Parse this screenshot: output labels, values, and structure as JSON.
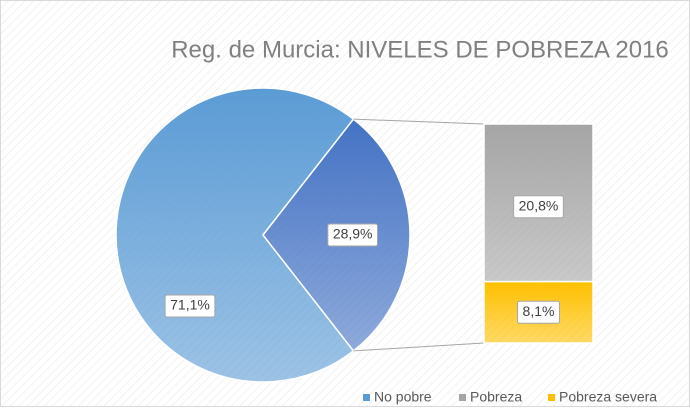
{
  "chart_data": {
    "type": "pie",
    "title": "Reg. de Murcia: NIVELES DE POBREZA 2016",
    "slices": {
      "values": [
        71.1,
        28.9
      ],
      "value_labels": [
        "71,1%",
        "28,9%"
      ],
      "colors": [
        "#5b9bd5",
        "#4472c4"
      ]
    },
    "breakdown": {
      "values": [
        20.8,
        8.1
      ],
      "value_labels": [
        "20,8%",
        "8,1%"
      ],
      "colors": [
        "#a5a5a5",
        "#ffc000"
      ]
    },
    "legend": [
      {
        "name": "No pobre",
        "color": "#5b9bd5"
      },
      {
        "name": "Pobreza",
        "color": "#a5a5a5"
      },
      {
        "name": "Pobreza severa",
        "color": "#ffc000"
      }
    ]
  }
}
